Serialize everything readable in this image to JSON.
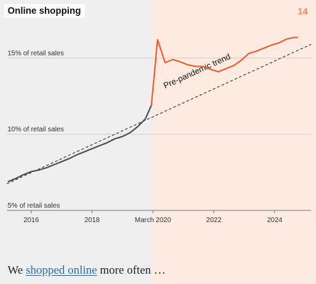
{
  "page": {
    "title": "Online shopping",
    "page_number": "14",
    "caption": {
      "prefix": "We ",
      "link_text": "shopped online",
      "suffix": " more often …"
    }
  },
  "colors": {
    "pre_period_bg": "#efefef",
    "post_period_bg": "#fdebe2",
    "pre_line": "#4a4a4a",
    "post_line": "#f05a28",
    "trend_line": "#222222",
    "accent_number": "#f08a55",
    "link": "#2a6aa8"
  },
  "chart_data": {
    "type": "line",
    "title": "Online shopping",
    "x_domain": [
      2015.2,
      2025.2
    ],
    "y_domain": [
      5.0,
      17.0
    ],
    "grid": true,
    "gridlines": [
      15,
      10,
      5
    ],
    "y_labels": [
      {
        "value": 15,
        "label": "15% of retail sales"
      },
      {
        "value": 10,
        "label": "10% of retail sales"
      },
      {
        "value": 5,
        "label": "5% of retail sales"
      }
    ],
    "x_ticks": [
      {
        "x": 2016,
        "label": "2016"
      },
      {
        "x": 2018,
        "label": "2018"
      },
      {
        "x": 2020.0,
        "label": "March 2020"
      },
      {
        "x": 2022,
        "label": "2022"
      },
      {
        "x": 2024,
        "label": "2024"
      }
    ],
    "split_x": 2020.0,
    "series": [
      {
        "segment": "pre",
        "points": [
          [
            2015.25,
            6.9
          ],
          [
            2015.5,
            7.1
          ],
          [
            2015.75,
            7.35
          ],
          [
            2016.0,
            7.55
          ],
          [
            2016.25,
            7.65
          ],
          [
            2016.5,
            7.8
          ],
          [
            2016.75,
            8.0
          ],
          [
            2017.0,
            8.2
          ],
          [
            2017.25,
            8.4
          ],
          [
            2017.5,
            8.65
          ],
          [
            2017.75,
            8.85
          ],
          [
            2018.0,
            9.05
          ],
          [
            2018.25,
            9.25
          ],
          [
            2018.5,
            9.45
          ],
          [
            2018.75,
            9.7
          ],
          [
            2019.0,
            9.85
          ],
          [
            2019.25,
            10.1
          ],
          [
            2019.5,
            10.5
          ],
          [
            2019.75,
            11.0
          ],
          [
            2019.95,
            11.9
          ]
        ]
      },
      {
        "segment": "post",
        "points": [
          [
            2019.95,
            11.9
          ],
          [
            2020.15,
            16.2
          ],
          [
            2020.4,
            14.7
          ],
          [
            2020.65,
            14.9
          ],
          [
            2020.9,
            14.75
          ],
          [
            2021.15,
            14.55
          ],
          [
            2021.4,
            14.45
          ],
          [
            2021.65,
            14.45
          ],
          [
            2021.9,
            14.25
          ],
          [
            2022.15,
            14.1
          ],
          [
            2022.4,
            14.3
          ],
          [
            2022.65,
            14.5
          ],
          [
            2022.9,
            14.85
          ],
          [
            2023.15,
            15.3
          ],
          [
            2023.4,
            15.45
          ],
          [
            2023.65,
            15.65
          ],
          [
            2023.9,
            15.85
          ],
          [
            2024.15,
            16.0
          ],
          [
            2024.4,
            16.25
          ],
          [
            2024.65,
            16.35
          ],
          [
            2024.75,
            16.35
          ]
        ]
      }
    ],
    "trend": {
      "label": "Pre-pandemic trend",
      "start": [
        2015.2,
        6.75
      ],
      "end": [
        2025.2,
        15.9
      ]
    }
  }
}
